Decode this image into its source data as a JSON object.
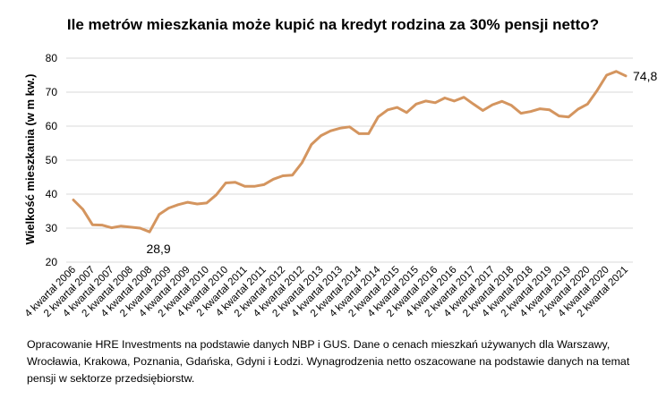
{
  "chart_data": {
    "type": "line",
    "title": "Ile metrów mieszkania może kupić na kredyt rodzina za 30% pensji netto?",
    "xlabel": "",
    "ylabel": "Wielkość mieszkania (w m kw.)",
    "ylim": [
      20,
      80
    ],
    "yticks": [
      20,
      30,
      40,
      50,
      60,
      70,
      80
    ],
    "grid": true,
    "legend": "none",
    "line_color": "#D4955F",
    "x": [
      "4 kwartał 2006",
      "1 kwartał 2007",
      "2 kwartał 2007",
      "3 kwartał 2007",
      "4 kwartał 2007",
      "1 kwartał 2008",
      "2 kwartał 2008",
      "3 kwartał 2008",
      "4 kwartał 2008",
      "1 kwartał 2009",
      "2 kwartał 2009",
      "3 kwartał 2009",
      "4 kwartał 2009",
      "1 kwartał 2010",
      "2 kwartał 2010",
      "3 kwartał 2010",
      "4 kwartał 2010",
      "1 kwartał 2011",
      "2 kwartał 2011",
      "3 kwartał 2011",
      "4 kwartał 2011",
      "1 kwartał 2012",
      "2 kwartał 2012",
      "3 kwartał 2012",
      "4 kwartał 2012",
      "1 kwartał 2013",
      "2 kwartał 2013",
      "3 kwartał 2013",
      "4 kwartał 2013",
      "1 kwartał 2014",
      "2 kwartał 2014",
      "3 kwartał 2014",
      "4 kwartał 2014",
      "1 kwartał 2015",
      "2 kwartał 2015",
      "3 kwartał 2015",
      "4 kwartał 2015",
      "1 kwartał 2016",
      "2 kwartał 2016",
      "3 kwartał 2016",
      "4 kwartał 2016",
      "1 kwartał 2017",
      "2 kwartał 2017",
      "3 kwartał 2017",
      "4 kwartał 2017",
      "1 kwartał 2018",
      "2 kwartał 2018",
      "3 kwartał 2018",
      "4 kwartał 2018",
      "1 kwartał 2019",
      "2 kwartał 2019",
      "3 kwartał 2019",
      "4 kwartał 2019",
      "1 kwartał 2020",
      "2 kwartał 2020",
      "3 kwartał 2020",
      "4 kwartał 2020",
      "1 kwartał 2021",
      "2 kwartał 2021"
    ],
    "x_tick_labels": [
      "4 kwartał 2006",
      "2 kwartał 2007",
      "4 kwartał 2007",
      "2 kwartał 2008",
      "4 kwartał 2008",
      "2 kwartał 2009",
      "4 kwartał 2009",
      "2 kwartał 2010",
      "4 kwartał 2010",
      "2 kwartał 2011",
      "4 kwartał 2011",
      "2 kwartał 2012",
      "4 kwartał 2012",
      "2 kwartał 2013",
      "4 kwartał 2013",
      "2 kwartał 2014",
      "4 kwartał 2014",
      "2 kwartał 2015",
      "4 kwartał 2015",
      "2 kwartał 2016",
      "4 kwartał 2016",
      "2 kwartał 2017",
      "4 kwartał 2017",
      "2 kwartał 2018",
      "4 kwartał 2018",
      "2 kwartał 2019",
      "4 kwartał 2019",
      "2 kwartał 2020",
      "4 kwartał 2020",
      "2 kwartał 2021"
    ],
    "series": [
      {
        "values": [
          38.3,
          35.5,
          31.0,
          30.9,
          30.1,
          30.6,
          30.3,
          30.0,
          28.9,
          34.0,
          35.9,
          36.9,
          37.6,
          37.1,
          37.4,
          39.8,
          43.3,
          43.5,
          42.3,
          42.3,
          42.8,
          44.4,
          45.4,
          45.6,
          49.2,
          54.6,
          57.2,
          58.6,
          59.4,
          59.8,
          57.8,
          57.8,
          62.7,
          64.8,
          65.5,
          64.0,
          66.5,
          67.4,
          66.9,
          68.3,
          67.4,
          68.5,
          66.5,
          64.6,
          66.3,
          67.3,
          66.1,
          63.8,
          64.3,
          65.1,
          64.8,
          63.0,
          62.7,
          65.0,
          66.5,
          70.5,
          75.0,
          76.1,
          74.8
        ]
      }
    ],
    "annotations": [
      {
        "label": "28,9",
        "x": "4 kwartał 2008",
        "y": 28.9
      },
      {
        "label": "74,8",
        "x": "2 kwartał 2021",
        "y": 74.8
      }
    ]
  },
  "footnote": "Opracowanie HRE Investments na podstawie danych NBP i GUS. Dane o cenach mieszkań używanych dla Warszawy, Wrocławia, Krakowa, Poznania, Gdańska, Gdyni i Łodzi. Wynagrodzenia netto oszacowane na podstawie danych na temat pensji w sektorze przedsiębiorstw."
}
